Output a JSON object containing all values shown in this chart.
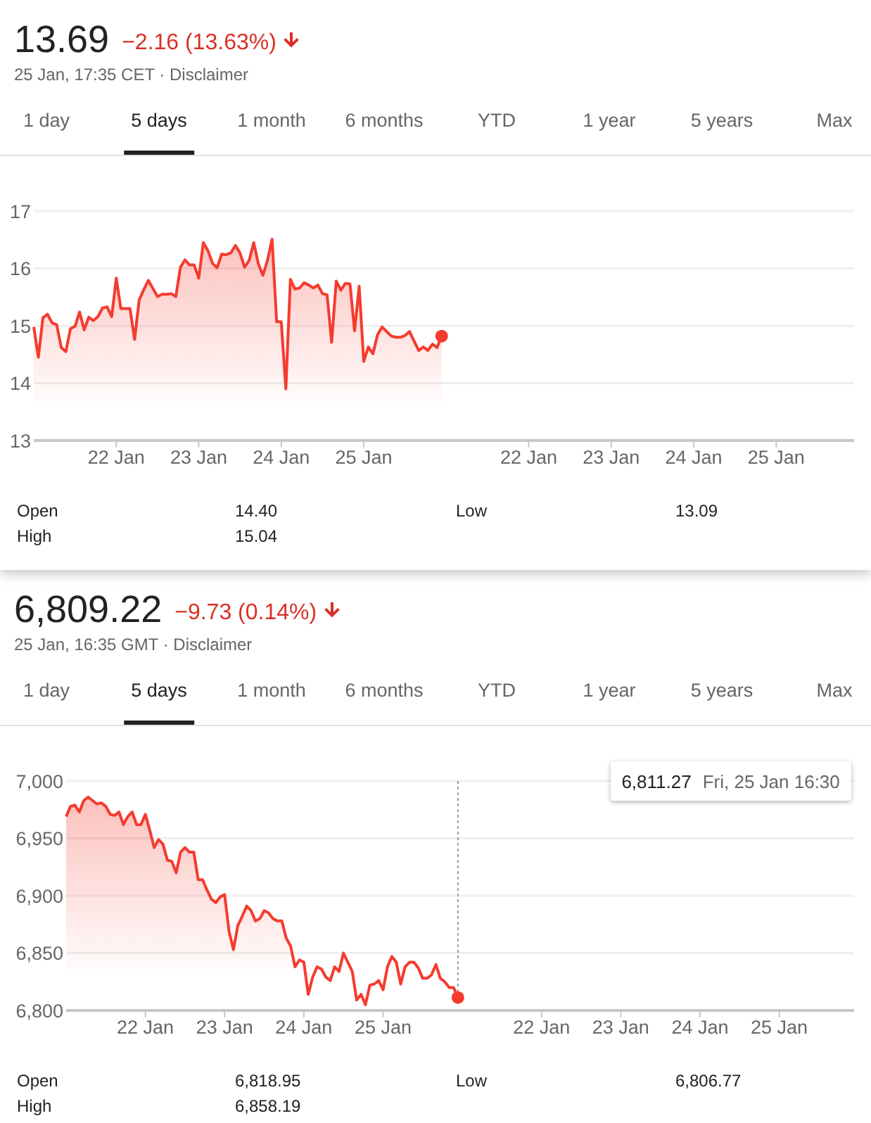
{
  "chart_data": [
    {
      "type": "area",
      "title": "13.69",
      "subtitle": "−2.16 (13.63%)",
      "annotations": [
        "25 Jan, 17:35 CET · Disclaimer",
        "1 day",
        "5 days",
        "1 month",
        "6 months",
        "YTD",
        "1 year",
        "5 years",
        "Max",
        "Open",
        "14.40",
        "Low",
        "13.09",
        "High",
        "15.04"
      ],
      "categories": [
        null,
        null,
        null,
        null,
        null,
        null,
        null,
        null,
        null,
        null,
        null,
        null,
        null,
        null,
        null,
        null,
        null,
        null,
        "22 Jan",
        null,
        null,
        null,
        null,
        null,
        null,
        null,
        null,
        null,
        null,
        null,
        null,
        null,
        null,
        null,
        null,
        null,
        "23 Jan",
        null,
        null,
        null,
        null,
        null,
        null,
        null,
        null,
        null,
        null,
        null,
        null,
        null,
        null,
        null,
        null,
        null,
        "24 Jan",
        null,
        null,
        null,
        null,
        null,
        null,
        null,
        null,
        null,
        null,
        null,
        null,
        null,
        null,
        null,
        null,
        null,
        "25 Jan",
        null,
        null,
        null,
        null,
        null,
        null,
        null,
        null,
        null,
        null,
        null,
        null,
        null,
        null,
        null,
        null,
        null
      ],
      "series": [
        {
          "color": "#f53b2f",
          "values": [
            14.98,
            14.45,
            15.14,
            15.2,
            15.05,
            15.02,
            14.62,
            14.55,
            14.95,
            14.99,
            15.24,
            14.93,
            15.15,
            15.09,
            15.16,
            15.31,
            15.33,
            15.16,
            15.83,
            15.3,
            15.3,
            15.3,
            14.76,
            15.45,
            15.63,
            15.79,
            15.65,
            15.51,
            15.55,
            15.55,
            15.56,
            15.51,
            16.02,
            16.15,
            16.06,
            16.06,
            15.83,
            16.45,
            16.31,
            16.09,
            16.01,
            16.25,
            16.24,
            16.27,
            16.4,
            16.27,
            16.02,
            16.14,
            16.45,
            16.08,
            15.88,
            16.14,
            16.51,
            15.07,
            15.07,
            13.9,
            15.81,
            15.64,
            15.66,
            15.75,
            15.71,
            15.66,
            15.71,
            15.56,
            15.54,
            14.71,
            15.78,
            15.62,
            15.74,
            15.73,
            14.91,
            15.69,
            14.38,
            14.63,
            14.51,
            14.84,
            14.98,
            14.9,
            14.82,
            14.8,
            14.8,
            14.83,
            14.9,
            14.73,
            14.57,
            14.63,
            14.57,
            14.68,
            14.62,
            14.82
          ]
        },
        {
          "type": "scatter",
          "color": "#f53b2f",
          "values": [
            null,
            null,
            null,
            null,
            null,
            null,
            null,
            null,
            null,
            null,
            null,
            null,
            null,
            null,
            null,
            null,
            null,
            null,
            null,
            null,
            null,
            null,
            null,
            null,
            null,
            null,
            null,
            null,
            null,
            null,
            null,
            null,
            null,
            null,
            null,
            null,
            null,
            null,
            null,
            null,
            null,
            null,
            null,
            null,
            null,
            null,
            null,
            null,
            null,
            null,
            null,
            null,
            null,
            null,
            null,
            null,
            null,
            null,
            null,
            null,
            null,
            null,
            null,
            null,
            null,
            null,
            null,
            null,
            null,
            null,
            null,
            null,
            null,
            null,
            null,
            null,
            null,
            null,
            null,
            null,
            null,
            null,
            null,
            null,
            null,
            null,
            null,
            null,
            null,
            14.82
          ]
        }
      ],
      "ylim": [
        13,
        17
      ],
      "yticks": [
        13,
        14,
        15,
        16,
        17
      ],
      "grid": "y"
    },
    {
      "type": "area",
      "title": "6,809.22",
      "subtitle": "−9.73 (0.14%)",
      "annotations": [
        "25 Jan, 16:35 GMT · Disclaimer",
        "1 day",
        "5 days",
        "1 month",
        "6 months",
        "YTD",
        "1 year",
        "5 years",
        "Max",
        "Open",
        "6,818.95",
        "Low",
        "6,806.77",
        "High",
        "6,858.19",
        "6,811.27",
        "Fri, 25 Jan 16:30"
      ],
      "categories": [
        null,
        null,
        null,
        null,
        null,
        null,
        null,
        null,
        null,
        null,
        null,
        null,
        null,
        null,
        null,
        null,
        null,
        null,
        "22 Jan",
        null,
        null,
        null,
        null,
        null,
        null,
        null,
        null,
        null,
        null,
        null,
        null,
        null,
        null,
        null,
        null,
        null,
        "23 Jan",
        null,
        null,
        null,
        null,
        null,
        null,
        null,
        null,
        null,
        null,
        null,
        null,
        null,
        null,
        null,
        null,
        null,
        "24 Jan",
        null,
        null,
        null,
        null,
        null,
        null,
        null,
        null,
        null,
        null,
        null,
        null,
        null,
        null,
        null,
        null,
        null,
        "25 Jan",
        null,
        null,
        null,
        null,
        null,
        null,
        null,
        null,
        null,
        null,
        null,
        null,
        null,
        null,
        null,
        null,
        null
      ],
      "series": [
        {
          "color": "#f53b2f",
          "values": [
            6969,
            6978,
            6979,
            6973,
            6983,
            6986,
            6983,
            6980,
            6981,
            6978,
            6971,
            6970,
            6973,
            6962,
            6969,
            6973,
            6962,
            6962,
            6971,
            6957,
            6942,
            6949,
            6945,
            6931,
            6930,
            6920,
            6938,
            6942,
            6938,
            6938,
            6914,
            6914,
            6905,
            6897,
            6894,
            6899,
            6901,
            6869,
            6853,
            6874,
            6882,
            6891,
            6887,
            6878,
            6880,
            6887,
            6885,
            6880,
            6878,
            6878,
            6863,
            6856,
            6838,
            6844,
            6842,
            6814,
            6829,
            6838,
            6836,
            6829,
            6826,
            6838,
            6834,
            6850,
            6842,
            6834,
            6809,
            6814,
            6805,
            6822,
            6823,
            6826,
            6818,
            6838,
            6847,
            6842,
            6823,
            6838,
            6842,
            6842,
            6837,
            6828,
            6828,
            6831,
            6840,
            6828,
            6825,
            6820,
            6820,
            6811.27
          ]
        },
        {
          "type": "scatter",
          "color": "#f53b2f",
          "values": [
            null,
            null,
            null,
            null,
            null,
            null,
            null,
            null,
            null,
            null,
            null,
            null,
            null,
            null,
            null,
            null,
            null,
            null,
            null,
            null,
            null,
            null,
            null,
            null,
            null,
            null,
            null,
            null,
            null,
            null,
            null,
            null,
            null,
            null,
            null,
            null,
            null,
            null,
            null,
            null,
            null,
            null,
            null,
            null,
            null,
            null,
            null,
            null,
            null,
            null,
            null,
            null,
            null,
            null,
            null,
            null,
            null,
            null,
            null,
            null,
            null,
            null,
            null,
            null,
            null,
            null,
            null,
            null,
            null,
            null,
            null,
            null,
            null,
            null,
            null,
            null,
            null,
            null,
            null,
            null,
            null,
            null,
            null,
            null,
            null,
            null,
            null,
            null,
            null,
            6811.27
          ]
        }
      ],
      "ylim": [
        6800,
        7000
      ],
      "yticks": [
        {
          "value": 6800,
          "label": "6,800"
        },
        {
          "value": 6850,
          "label": "6,850"
        },
        {
          "value": 6900,
          "label": "6,900"
        },
        {
          "value": 6950,
          "label": "6,950"
        },
        {
          "value": 7000,
          "label": "7,000"
        }
      ],
      "grid": "y"
    }
  ]
}
